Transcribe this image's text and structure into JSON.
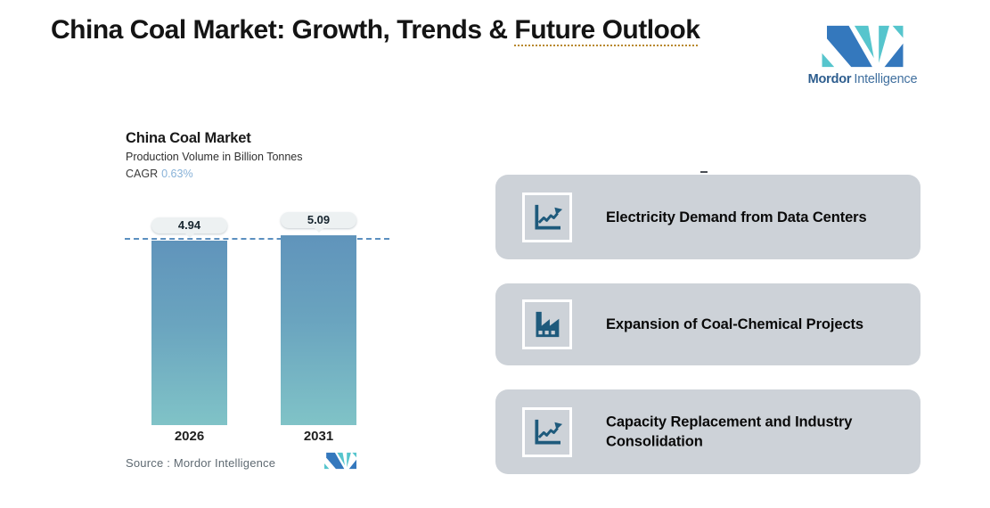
{
  "header": {
    "title_prefix": "China Coal Market: Growth, Trends & ",
    "title_underlined": "Future Outlook",
    "underline_color": "#b8882c"
  },
  "brand": {
    "name_bold": "Mordor",
    "name_regular": "Intelligence",
    "blue": "#3478bd",
    "teal": "#56c5cd"
  },
  "chart": {
    "title": "China Coal Market",
    "subtitle": "Production Volume in Billion Tonnes",
    "cagr_label": "CAGR",
    "cagr_value": "0.63%",
    "cagr_value_color": "#88b2d8",
    "source_label": "Source :  Mordor Intelligence",
    "bar_color_top": "#6094bb",
    "bar_color_bottom": "#80c3c7",
    "dashed_line_color": "#5b8fc0"
  },
  "chart_data": {
    "type": "bar",
    "title": "China Coal Market",
    "subtitle": "Production Volume in Billion Tonnes",
    "ylabel": "Production Volume in Billion Tonnes",
    "categories": [
      "2026",
      "2031"
    ],
    "values": [
      4.94,
      5.09
    ],
    "data_labels": [
      "4.94",
      "5.09"
    ],
    "cagr": "0.63%",
    "annotations": [
      "dashed reference line at top of bars"
    ],
    "grid": false,
    "legend": false
  },
  "cards": [
    {
      "icon": "line-chart-up-icon",
      "label": "Electricity Demand from Data Centers"
    },
    {
      "icon": "factory-icon",
      "label": "Expansion of Coal-Chemical Projects"
    },
    {
      "icon": "line-chart-up-icon",
      "label": "Capacity Replacement and Industry Consolidation"
    }
  ],
  "colors": {
    "card_background": "#cdd2d8",
    "icon_teal": "#1e5a7c",
    "page_background": "#ffffff"
  }
}
